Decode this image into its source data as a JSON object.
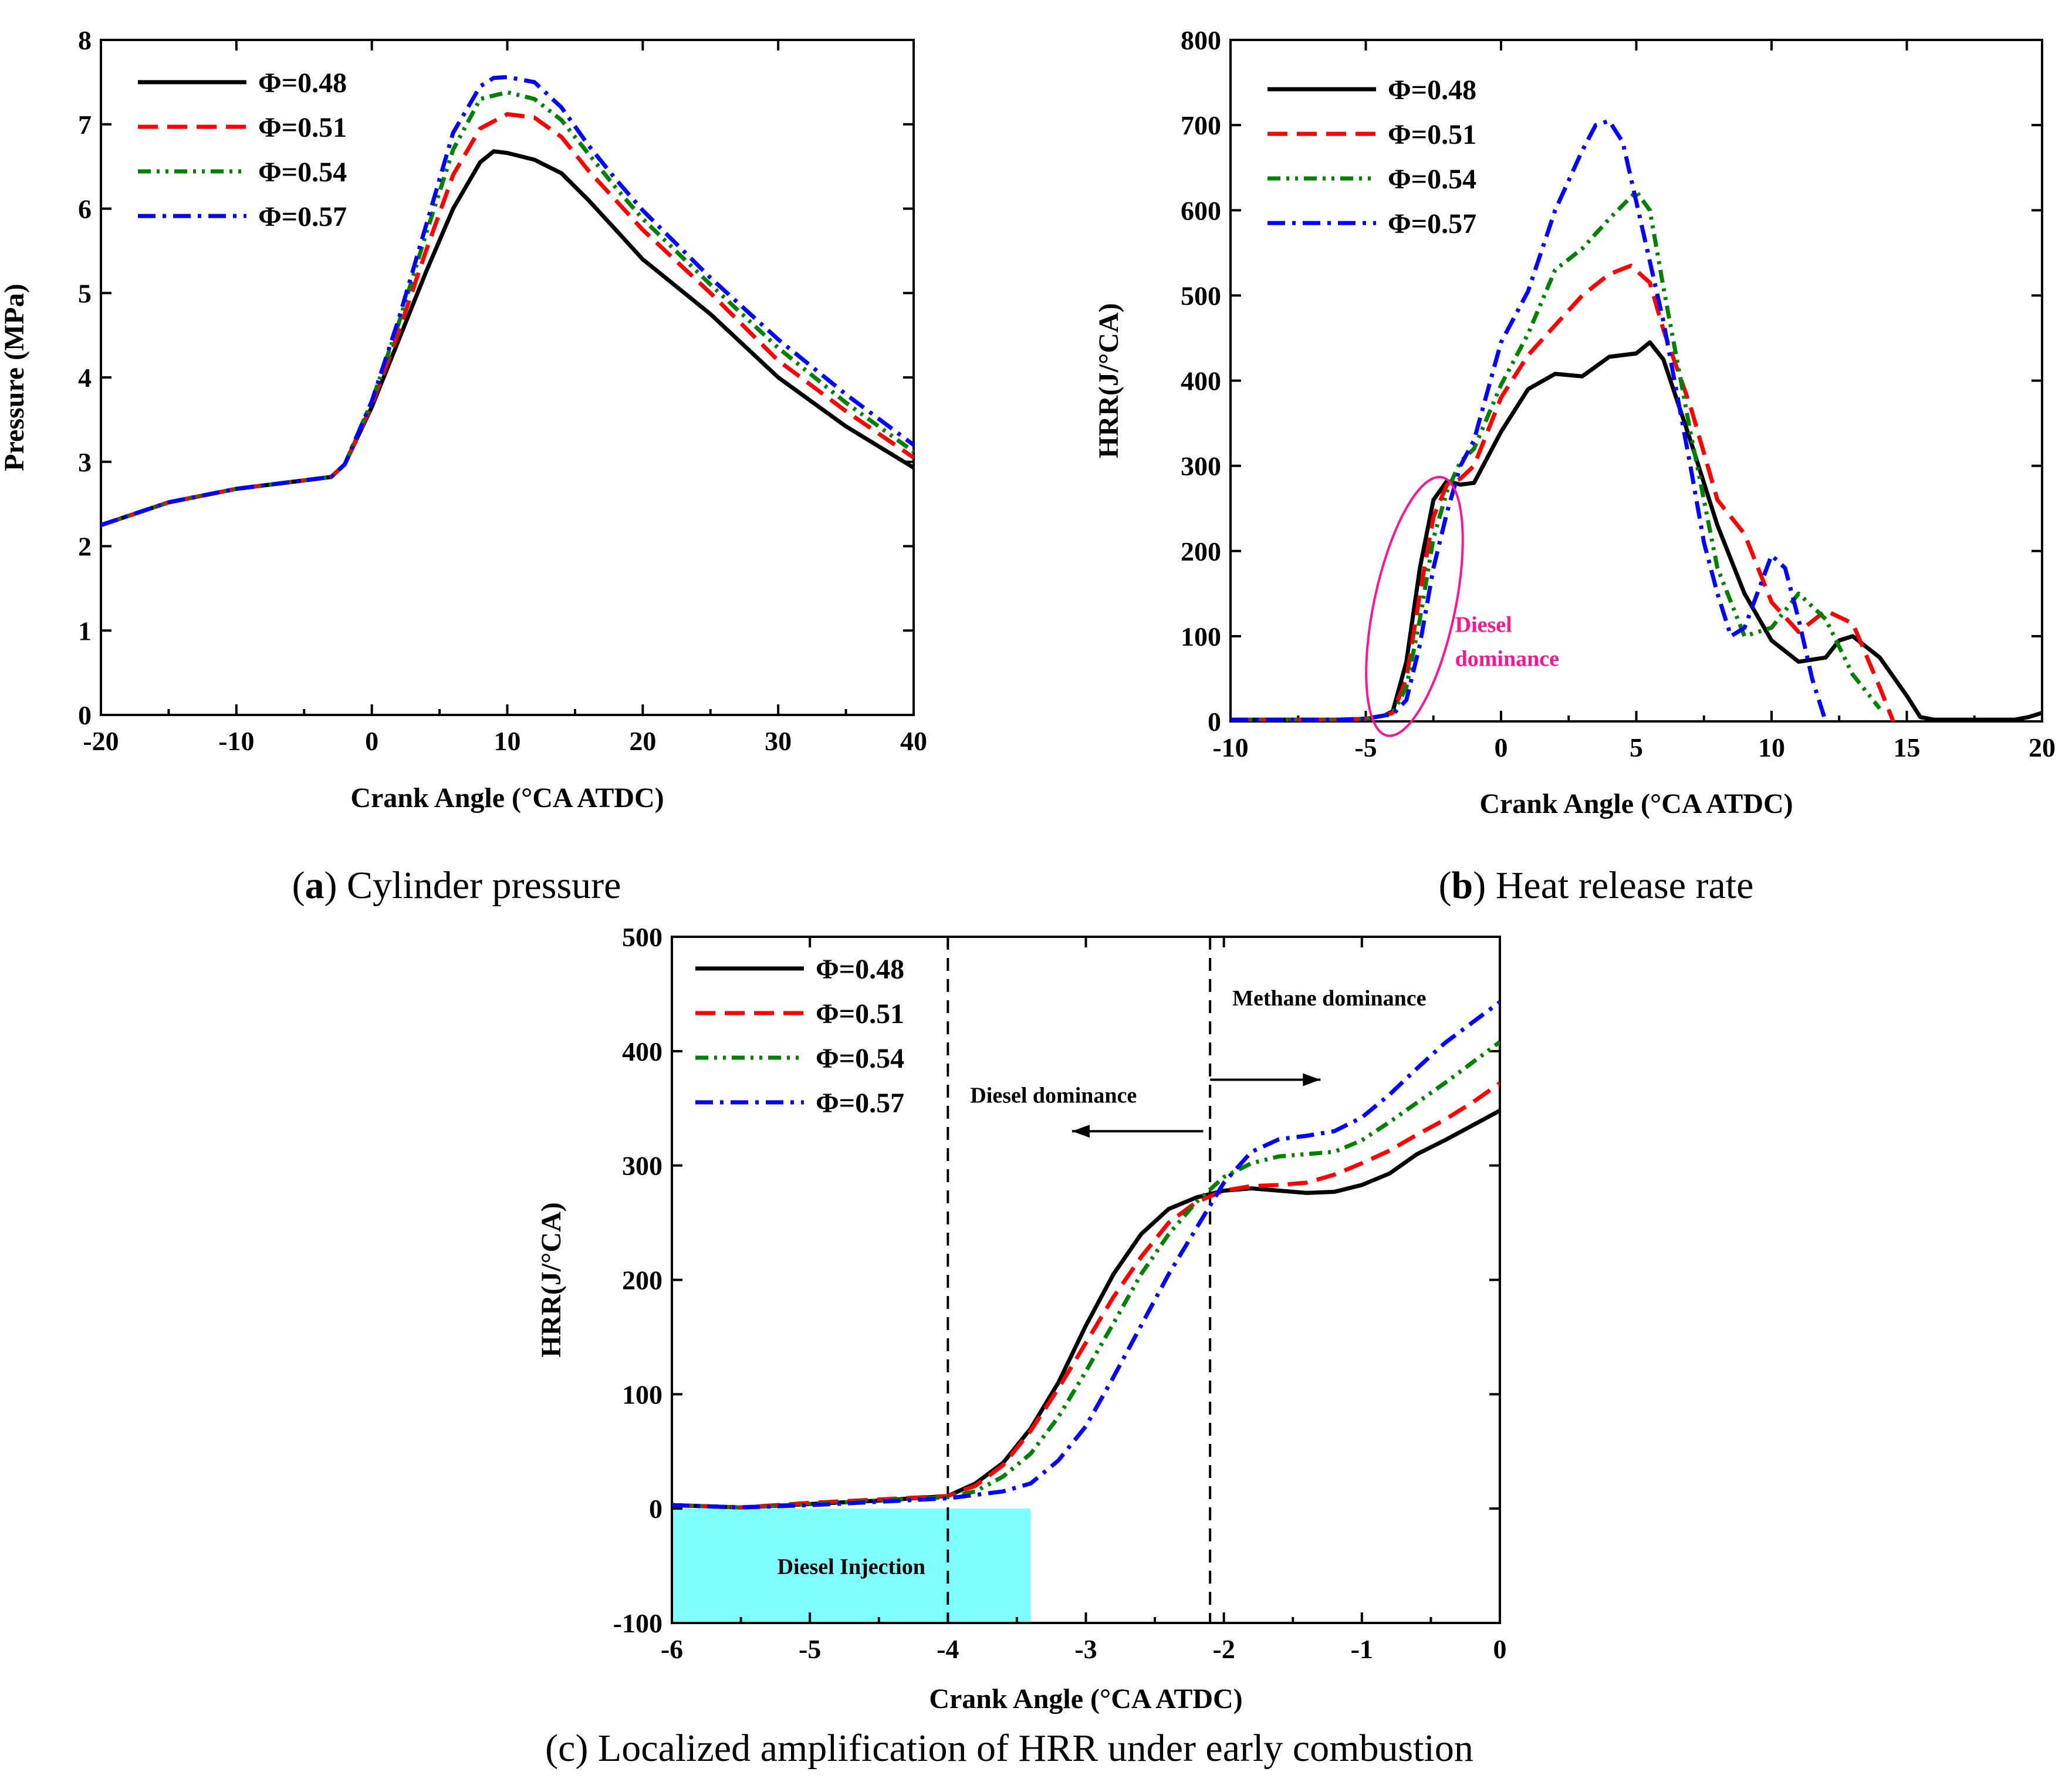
{
  "chart_data": [
    {
      "id": "a",
      "type": "line",
      "title": "",
      "caption_letter": "a",
      "caption_text": "Cylinder pressure",
      "xlabel": "Crank Angle (°CA ATDC)",
      "ylabel": "Pressure (MPa)",
      "xlim": [
        -20,
        40
      ],
      "ylim": [
        0,
        8
      ],
      "xticks": [
        -20,
        -10,
        0,
        10,
        20,
        30,
        40
      ],
      "yticks": [
        0,
        1,
        2,
        3,
        4,
        5,
        6,
        7,
        8
      ],
      "legend_position": "top-left",
      "series": [
        {
          "name": "Φ=0.48",
          "color": "#000000",
          "dash": "solid",
          "x": [
            -20,
            -15,
            -10,
            -5,
            -3,
            -2,
            0,
            2,
            4,
            6,
            8,
            9,
            10,
            12,
            14,
            16,
            18,
            20,
            25,
            30,
            35,
            40
          ],
          "y": [
            2.25,
            2.52,
            2.68,
            2.78,
            2.82,
            2.97,
            3.65,
            4.45,
            5.25,
            6.0,
            6.55,
            6.68,
            6.66,
            6.58,
            6.42,
            6.1,
            5.75,
            5.4,
            4.75,
            4.0,
            3.42,
            2.93
          ]
        },
        {
          "name": "Φ=0.51",
          "color": "#ff0000",
          "dash": "long-dash",
          "x": [
            -20,
            -15,
            -10,
            -5,
            -3,
            -2,
            0,
            2,
            4,
            6,
            8,
            10,
            12,
            14,
            16,
            18,
            20,
            25,
            30,
            35,
            40
          ],
          "y": [
            2.25,
            2.52,
            2.68,
            2.78,
            2.82,
            2.97,
            3.68,
            4.55,
            5.5,
            6.4,
            6.95,
            7.12,
            7.08,
            6.85,
            6.45,
            6.1,
            5.75,
            5.0,
            4.2,
            3.6,
            3.05
          ]
        },
        {
          "name": "Φ=0.54",
          "color": "#008000",
          "dash": "dot-dot-dash",
          "x": [
            -20,
            -15,
            -10,
            -5,
            -3,
            -2,
            0,
            2,
            4,
            6,
            8,
            10,
            12,
            14,
            16,
            18,
            20,
            25,
            30,
            35,
            40
          ],
          "y": [
            2.25,
            2.52,
            2.68,
            2.78,
            2.82,
            2.97,
            3.72,
            4.65,
            5.7,
            6.7,
            7.3,
            7.38,
            7.3,
            7.05,
            6.65,
            6.25,
            5.88,
            5.1,
            4.35,
            3.7,
            3.12
          ]
        },
        {
          "name": "Φ=0.57",
          "color": "#0000ff",
          "dash": "dash-dot",
          "x": [
            -20,
            -15,
            -10,
            -5,
            -3,
            -2,
            0,
            2,
            4,
            6,
            8,
            9,
            10,
            12,
            14,
            16,
            18,
            20,
            25,
            30,
            35,
            40
          ],
          "y": [
            2.25,
            2.52,
            2.68,
            2.78,
            2.82,
            2.97,
            3.72,
            4.7,
            5.8,
            6.9,
            7.45,
            7.55,
            7.56,
            7.5,
            7.2,
            6.75,
            6.35,
            5.98,
            5.18,
            4.45,
            3.8,
            3.2
          ]
        }
      ]
    },
    {
      "id": "b",
      "type": "line",
      "title": "",
      "caption_letter": "b",
      "caption_text": "Heat release rate",
      "xlabel": "Crank Angle (°CA ATDC)",
      "ylabel": "HRR(J/°CA)",
      "xlim": [
        -10,
        20
      ],
      "ylim": [
        0,
        800
      ],
      "xticks": [
        -10,
        -5,
        0,
        5,
        10,
        15,
        20
      ],
      "yticks": [
        0,
        100,
        200,
        300,
        400,
        500,
        600,
        700,
        800
      ],
      "legend_position": "top-left",
      "annotations": [
        {
          "text": "Diesel",
          "x": -1.7,
          "y": 105
        },
        {
          "text": "dominance",
          "x": -1.7,
          "y": 65
        }
      ],
      "annotation_color": "#ff1493",
      "ellipse": {
        "cx": -3.2,
        "cy": 135,
        "rx": 1.5,
        "ry": 155,
        "color": "#ff1493"
      },
      "series": [
        {
          "name": "Φ=0.48",
          "color": "#000000",
          "dash": "solid",
          "x": [
            -10,
            -6,
            -5,
            -4.3,
            -4,
            -3.5,
            -3,
            -2.5,
            -2,
            -1.5,
            -1,
            0,
            1,
            2,
            3,
            4,
            5,
            5.5,
            6,
            7,
            8,
            9,
            10,
            11,
            12,
            12.5,
            13,
            14,
            15,
            15.5,
            16,
            17,
            18,
            19,
            19.5,
            20
          ],
          "y": [
            2,
            2,
            3,
            7,
            12,
            70,
            180,
            260,
            282,
            278,
            280,
            340,
            390,
            408,
            405,
            428,
            432,
            445,
            425,
            330,
            230,
            150,
            95,
            70,
            75,
            95,
            100,
            75,
            30,
            5,
            2,
            2,
            2,
            2,
            5,
            10
          ]
        },
        {
          "name": "Φ=0.51",
          "color": "#ff0000",
          "dash": "long-dash",
          "x": [
            -10,
            -6,
            -5,
            -4.3,
            -4,
            -3.5,
            -3,
            -2.5,
            -2,
            -1.5,
            -1,
            0,
            1,
            2,
            3,
            4,
            4.8,
            5.5,
            6,
            7,
            8,
            9,
            10,
            11,
            12,
            13,
            14,
            14.5
          ],
          "y": [
            2,
            2,
            3,
            7,
            10,
            50,
            150,
            240,
            278,
            285,
            300,
            380,
            430,
            465,
            500,
            525,
            535,
            515,
            460,
            370,
            260,
            220,
            140,
            105,
            130,
            115,
            40,
            0
          ]
        },
        {
          "name": "Φ=0.54",
          "color": "#008000",
          "dash": "dot-dot-dash",
          "x": [
            -10,
            -6,
            -5,
            -4.3,
            -4,
            -3.5,
            -3,
            -2.5,
            -2,
            -1.5,
            -1,
            0,
            1,
            2,
            3,
            4,
            5,
            5.5,
            6,
            7,
            8,
            9,
            10,
            11,
            12,
            13,
            14
          ],
          "y": [
            2,
            2,
            3,
            7,
            10,
            40,
            120,
            215,
            270,
            305,
            320,
            395,
            455,
            530,
            555,
            590,
            622,
            600,
            510,
            340,
            180,
            100,
            110,
            150,
            120,
            55,
            15
          ]
        },
        {
          "name": "Φ=0.57",
          "color": "#0000ff",
          "dash": "dash-dot",
          "x": [
            -10,
            -6,
            -5,
            -4.3,
            -4,
            -3.5,
            -3,
            -2.5,
            -2,
            -1.5,
            -1,
            0,
            1,
            2,
            3,
            3.5,
            4,
            4.5,
            5,
            6,
            7,
            7.5,
            8,
            8.5,
            9,
            10,
            10.5,
            11,
            11.5,
            12
          ],
          "y": [
            2,
            2,
            3,
            7,
            8,
            25,
            90,
            180,
            245,
            300,
            330,
            445,
            505,
            600,
            670,
            700,
            705,
            680,
            610,
            470,
            300,
            210,
            150,
            100,
            110,
            195,
            180,
            120,
            50,
            0
          ]
        }
      ]
    },
    {
      "id": "c",
      "type": "line",
      "title": "",
      "caption_letter": "c",
      "caption_text": "Localized amplification of HRR under early combustion",
      "xlabel": "Crank Angle (°CA ATDC)",
      "ylabel": "HRR(J/°CA)",
      "xlim": [
        -6,
        0
      ],
      "ylim": [
        -100,
        500
      ],
      "xticks": [
        -6,
        -5,
        -4,
        -3,
        -2,
        -1,
        0
      ],
      "yticks": [
        -100,
        0,
        100,
        200,
        300,
        400,
        500
      ],
      "legend_position": "top-left",
      "vlines": [
        -4,
        -2.1
      ],
      "shaded_region": {
        "x0": -6,
        "x1": -3.4,
        "y0": -100,
        "y1": 0,
        "color": "#80ffff",
        "label": "Diesel Injection"
      },
      "annotations": [
        {
          "text": "Methane dominance",
          "x": -2.1,
          "y": 440
        },
        {
          "text": "Diesel  dominance",
          "x": -4.0,
          "y": 355
        }
      ],
      "arrows": [
        {
          "from": [
            -2.1,
            375
          ],
          "to": [
            -1.3,
            375
          ]
        },
        {
          "from": [
            -2.15,
            330
          ],
          "to": [
            -3.1,
            330
          ]
        }
      ],
      "series": [
        {
          "name": "Φ=0.48",
          "color": "#000000",
          "dash": "solid",
          "x": [
            -6,
            -5.5,
            -5,
            -4.5,
            -4,
            -3.8,
            -3.6,
            -3.4,
            -3.2,
            -3.0,
            -2.8,
            -2.6,
            -2.4,
            -2.2,
            -2.0,
            -1.8,
            -1.6,
            -1.4,
            -1.2,
            -1.0,
            -0.8,
            -0.6,
            -0.4,
            -0.2,
            0
          ],
          "y": [
            3,
            1,
            4,
            7,
            11,
            22,
            40,
            70,
            110,
            160,
            205,
            240,
            262,
            272,
            278,
            280,
            278,
            276,
            277,
            283,
            293,
            310,
            322,
            335,
            348
          ]
        },
        {
          "name": "Φ=0.51",
          "color": "#ff0000",
          "dash": "long-dash",
          "x": [
            -6,
            -5.5,
            -5,
            -4.5,
            -4,
            -3.8,
            -3.6,
            -3.4,
            -3.2,
            -3.0,
            -2.8,
            -2.6,
            -2.4,
            -2.2,
            -2.0,
            -1.8,
            -1.6,
            -1.4,
            -1.2,
            -1.0,
            -0.8,
            -0.6,
            -0.4,
            -0.2,
            0
          ],
          "y": [
            3,
            1,
            5,
            8,
            11,
            20,
            38,
            68,
            105,
            145,
            185,
            220,
            250,
            268,
            278,
            282,
            283,
            285,
            292,
            302,
            313,
            327,
            340,
            355,
            372
          ]
        },
        {
          "name": "Φ=0.54",
          "color": "#008000",
          "dash": "dot-dot-dash",
          "x": [
            -6,
            -5.5,
            -5,
            -4.5,
            -4,
            -3.8,
            -3.6,
            -3.4,
            -3.2,
            -3.0,
            -2.8,
            -2.6,
            -2.4,
            -2.2,
            -2.0,
            -1.8,
            -1.6,
            -1.4,
            -1.2,
            -1.0,
            -0.8,
            -0.6,
            -0.4,
            -0.2,
            0
          ],
          "y": [
            3,
            1,
            4,
            7,
            10,
            15,
            28,
            48,
            80,
            120,
            162,
            205,
            240,
            268,
            290,
            302,
            308,
            310,
            312,
            322,
            338,
            355,
            372,
            390,
            408
          ]
        },
        {
          "name": "Φ=0.57",
          "color": "#0000ff",
          "dash": "dash-dot",
          "x": [
            -6,
            -5.5,
            -5,
            -4.5,
            -4,
            -3.8,
            -3.6,
            -3.4,
            -3.2,
            -3.0,
            -2.8,
            -2.6,
            -2.4,
            -2.2,
            -2.0,
            -1.8,
            -1.6,
            -1.4,
            -1.2,
            -1.0,
            -0.8,
            -0.6,
            -0.4,
            -0.2,
            0
          ],
          "y": [
            3,
            1,
            3,
            6,
            9,
            12,
            15,
            22,
            42,
            72,
            115,
            160,
            205,
            245,
            285,
            312,
            323,
            326,
            330,
            342,
            362,
            385,
            407,
            425,
            443
          ]
        }
      ]
    }
  ]
}
